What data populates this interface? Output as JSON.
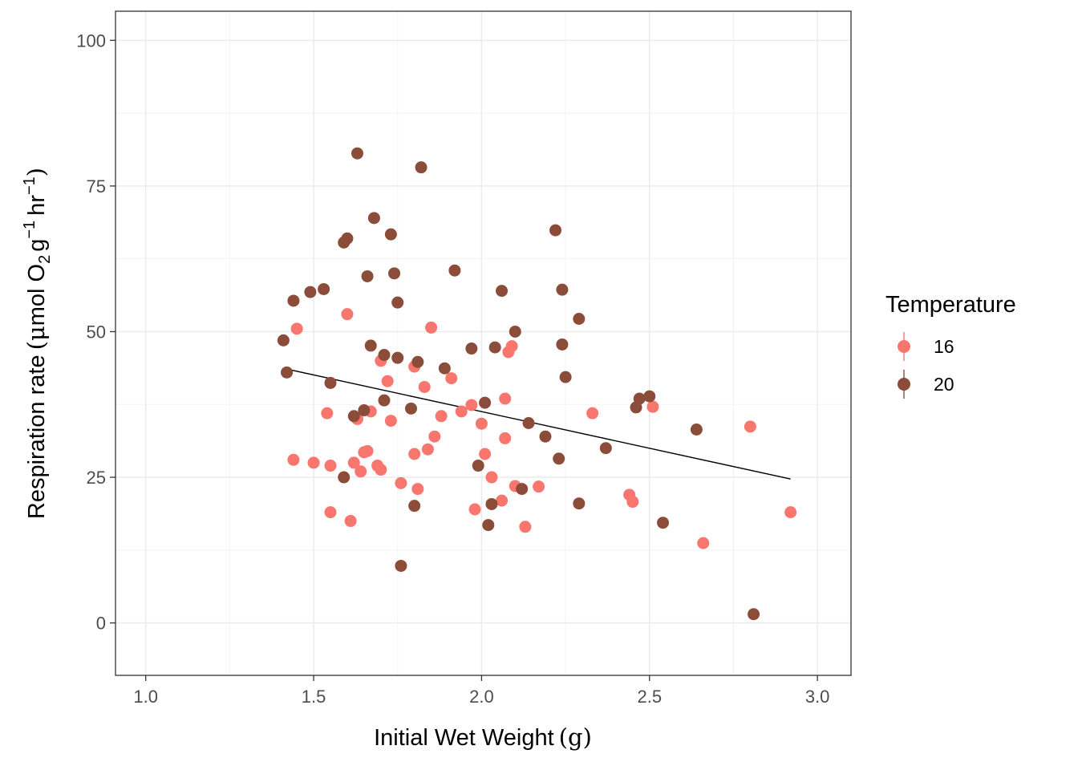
{
  "chart_data": {
    "type": "scatter",
    "xlabel": "Initial Wet Weight",
    "xunit": "g",
    "ylabel": {
      "prefix": "Respiration rate",
      "mu": "μ",
      "mol": "mol O",
      "sub2": "2",
      "g": "g",
      "sup1": "−1",
      "hr": "hr",
      "sup2": "−1"
    },
    "xlim": [
      0.91,
      3.1
    ],
    "ylim": [
      -9,
      105
    ],
    "xticks": [
      "1.0",
      "1.5",
      "2.0",
      "2.5",
      "3.0"
    ],
    "xtick_values": [
      1.0,
      1.5,
      2.0,
      2.5,
      3.0
    ],
    "yticks": [
      "0",
      "25",
      "50",
      "75",
      "100"
    ],
    "ytick_values": [
      0,
      25,
      50,
      75,
      100
    ],
    "grid": true,
    "legend": {
      "title": "Temperature",
      "position": "right",
      "entries": [
        "16",
        "20"
      ]
    },
    "colors": {
      "16": "#f8766d",
      "20": "#8b4c39",
      "trend": "#000000"
    },
    "trend_line": {
      "x": [
        1.41,
        2.92
      ],
      "y": [
        43.7,
        24.7
      ]
    },
    "series": [
      {
        "name": "16",
        "points": [
          [
            1.44,
            28
          ],
          [
            1.45,
            50.5
          ],
          [
            1.5,
            27.5
          ],
          [
            1.54,
            36
          ],
          [
            1.55,
            27
          ],
          [
            1.55,
            19
          ],
          [
            1.6,
            53
          ],
          [
            1.61,
            17.5
          ],
          [
            1.62,
            27.5
          ],
          [
            1.63,
            35
          ],
          [
            1.64,
            26
          ],
          [
            1.65,
            29.3
          ],
          [
            1.66,
            29.5
          ],
          [
            1.67,
            36.3
          ],
          [
            1.69,
            27
          ],
          [
            1.7,
            26.3
          ],
          [
            1.7,
            45
          ],
          [
            1.72,
            41.5
          ],
          [
            1.73,
            34.7
          ],
          [
            1.76,
            24
          ],
          [
            1.8,
            29
          ],
          [
            1.8,
            44
          ],
          [
            1.81,
            23
          ],
          [
            1.83,
            40.5
          ],
          [
            1.84,
            29.8
          ],
          [
            1.85,
            50.7
          ],
          [
            1.86,
            32
          ],
          [
            1.88,
            35.5
          ],
          [
            1.91,
            42
          ],
          [
            1.94,
            36.3
          ],
          [
            1.97,
            37.4
          ],
          [
            1.98,
            19.5
          ],
          [
            2.0,
            34.2
          ],
          [
            2.01,
            29
          ],
          [
            2.03,
            25
          ],
          [
            2.06,
            21
          ],
          [
            2.07,
            31.7
          ],
          [
            2.07,
            38.5
          ],
          [
            2.08,
            46.5
          ],
          [
            2.09,
            47.5
          ],
          [
            2.1,
            23.5
          ],
          [
            2.13,
            16.5
          ],
          [
            2.17,
            23.4
          ],
          [
            2.33,
            36
          ],
          [
            2.44,
            22
          ],
          [
            2.45,
            20.8
          ],
          [
            2.51,
            37.1
          ],
          [
            2.66,
            13.7
          ],
          [
            2.8,
            33.7
          ],
          [
            2.92,
            19
          ]
        ]
      },
      {
        "name": "20",
        "points": [
          [
            1.41,
            48.5
          ],
          [
            1.42,
            43
          ],
          [
            1.44,
            55.3
          ],
          [
            1.49,
            56.8
          ],
          [
            1.53,
            57.3
          ],
          [
            1.55,
            41.2
          ],
          [
            1.59,
            25
          ],
          [
            1.59,
            65.3
          ],
          [
            1.6,
            66
          ],
          [
            1.62,
            35.5
          ],
          [
            1.63,
            80.6
          ],
          [
            1.65,
            36.5
          ],
          [
            1.66,
            59.5
          ],
          [
            1.67,
            47.6
          ],
          [
            1.68,
            69.5
          ],
          [
            1.71,
            38.2
          ],
          [
            1.71,
            46
          ],
          [
            1.73,
            66.7
          ],
          [
            1.74,
            60
          ],
          [
            1.75,
            45.5
          ],
          [
            1.75,
            55
          ],
          [
            1.76,
            9.8
          ],
          [
            1.79,
            36.8
          ],
          [
            1.8,
            20.1
          ],
          [
            1.81,
            44.8
          ],
          [
            1.82,
            78.2
          ],
          [
            1.89,
            43.7
          ],
          [
            1.92,
            60.5
          ],
          [
            1.97,
            47.1
          ],
          [
            1.99,
            27
          ],
          [
            2.01,
            37.8
          ],
          [
            2.02,
            16.8
          ],
          [
            2.03,
            20.4
          ],
          [
            2.04,
            47.3
          ],
          [
            2.06,
            57
          ],
          [
            2.1,
            50
          ],
          [
            2.12,
            23
          ],
          [
            2.14,
            34.3
          ],
          [
            2.19,
            32
          ],
          [
            2.22,
            67.4
          ],
          [
            2.23,
            28.2
          ],
          [
            2.24,
            47.8
          ],
          [
            2.24,
            57.2
          ],
          [
            2.25,
            42.2
          ],
          [
            2.29,
            52.2
          ],
          [
            2.29,
            20.5
          ],
          [
            2.37,
            30
          ],
          [
            2.46,
            37
          ],
          [
            2.47,
            38.5
          ],
          [
            2.5,
            38.9
          ],
          [
            2.54,
            17.2
          ],
          [
            2.64,
            33.2
          ],
          [
            2.81,
            1.5
          ]
        ]
      }
    ]
  }
}
